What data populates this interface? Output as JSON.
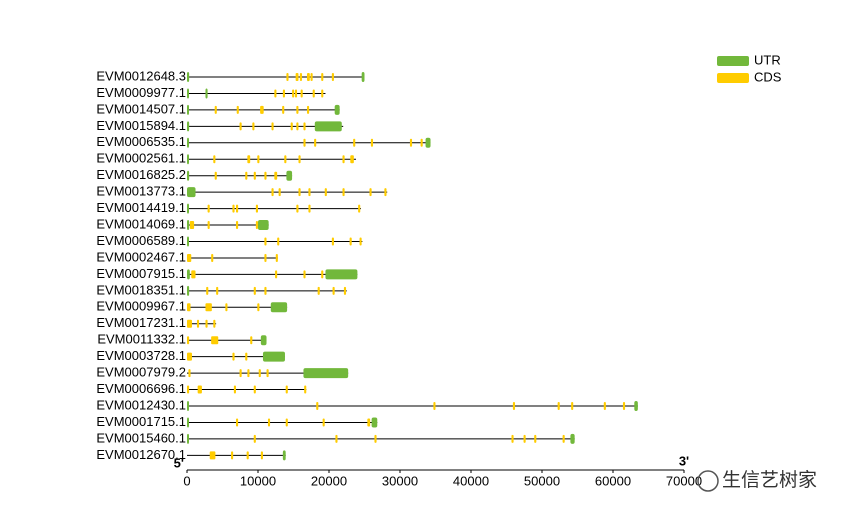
{
  "chart_data": {
    "type": "gene",
    "legend": "top-right",
    "utr_label": "UTR",
    "cds_label": "CDS",
    "utr_color": "#72b83b",
    "cds_color": "#ffcc00",
    "five_prime": "5'",
    "three_prime": "3'",
    "watermark": "生信艺树家",
    "xlim": [
      0,
      70000
    ],
    "xticks": [
      0,
      10000,
      20000,
      30000,
      40000,
      50000,
      60000,
      70000
    ],
    "genes": [
      {
        "name": "EVM0012648.3",
        "length": 25000,
        "utr": [
          [
            0,
            300
          ],
          [
            24600,
            25000
          ]
        ],
        "cds": [
          [
            14000,
            14300
          ],
          [
            15300,
            15700
          ],
          [
            15900,
            16200
          ],
          [
            16900,
            17300
          ],
          [
            17400,
            17700
          ],
          [
            18900,
            19200
          ],
          [
            20400,
            20700
          ]
        ]
      },
      {
        "name": "EVM0009977.1",
        "length": 19500,
        "utr": [
          [
            0,
            200
          ],
          [
            2600,
            2900
          ]
        ],
        "cds": [
          [
            12300,
            12600
          ],
          [
            13500,
            13800
          ],
          [
            14800,
            15100
          ],
          [
            15200,
            15500
          ],
          [
            16000,
            16300
          ],
          [
            17700,
            18000
          ],
          [
            18900,
            19200
          ]
        ]
      },
      {
        "name": "EVM0014507.1",
        "length": 21500,
        "utr": [
          [
            0,
            200
          ],
          [
            20800,
            21500
          ]
        ],
        "cds": [
          [
            3900,
            4200
          ],
          [
            7000,
            7300
          ],
          [
            10300,
            10800
          ],
          [
            13400,
            13700
          ],
          [
            15400,
            15700
          ],
          [
            16900,
            17200
          ]
        ]
      },
      {
        "name": "EVM0015894.1",
        "length": 22000,
        "utr": [
          [
            0,
            300
          ],
          [
            18000,
            21800
          ]
        ],
        "cds": [
          [
            7400,
            7700
          ],
          [
            9200,
            9500
          ],
          [
            11900,
            12200
          ],
          [
            14600,
            14900
          ],
          [
            15400,
            15700
          ],
          [
            16400,
            16700
          ]
        ]
      },
      {
        "name": "EVM0006535.1",
        "length": 34300,
        "utr": [
          [
            0,
            200
          ],
          [
            33600,
            34300
          ]
        ],
        "cds": [
          [
            16400,
            16700
          ],
          [
            17900,
            18200
          ],
          [
            23400,
            23700
          ],
          [
            25900,
            26200
          ],
          [
            31400,
            31700
          ],
          [
            32900,
            33200
          ]
        ]
      },
      {
        "name": "EVM0002561.1",
        "length": 23800,
        "utr": [
          [
            0,
            200
          ]
        ],
        "cds": [
          [
            3700,
            4000
          ],
          [
            8500,
            8900
          ],
          [
            9900,
            10200
          ],
          [
            13700,
            14000
          ],
          [
            15700,
            16000
          ],
          [
            21900,
            22200
          ],
          [
            23000,
            23500
          ]
        ]
      },
      {
        "name": "EVM0016825.2",
        "length": 14800,
        "utr": [
          [
            0,
            300
          ],
          [
            14000,
            14800
          ]
        ],
        "cds": [
          [
            3900,
            4200
          ],
          [
            8200,
            8500
          ],
          [
            9400,
            9700
          ],
          [
            10900,
            11200
          ],
          [
            12300,
            12700
          ]
        ]
      },
      {
        "name": "EVM0013773.1",
        "length": 28200,
        "utr": [
          [
            0,
            1200
          ]
        ],
        "cds": [
          [
            11900,
            12200
          ],
          [
            12900,
            13200
          ],
          [
            15700,
            16000
          ],
          [
            17100,
            17400
          ],
          [
            19400,
            19700
          ],
          [
            21900,
            22200
          ],
          [
            25700,
            26000
          ],
          [
            27800,
            28100
          ]
        ]
      },
      {
        "name": "EVM0014419.1",
        "length": 24500,
        "utr": [
          [
            0,
            200
          ]
        ],
        "cds": [
          [
            2900,
            3200
          ],
          [
            6400,
            6700
          ],
          [
            6900,
            7200
          ],
          [
            9700,
            10000
          ],
          [
            15400,
            15700
          ],
          [
            17100,
            17400
          ],
          [
            24100,
            24400
          ]
        ]
      },
      {
        "name": "EVM0014069.1",
        "length": 11500,
        "utr": [
          [
            0,
            300
          ],
          [
            10000,
            11500
          ]
        ],
        "cds": [
          [
            400,
            1000
          ],
          [
            2900,
            3200
          ],
          [
            6900,
            7200
          ],
          [
            9700,
            10000
          ]
        ]
      },
      {
        "name": "EVM0006589.1",
        "length": 24700,
        "utr": [
          [
            0,
            200
          ]
        ],
        "cds": [
          [
            10900,
            11200
          ],
          [
            12700,
            13000
          ],
          [
            20400,
            20700
          ],
          [
            22900,
            23200
          ],
          [
            24300,
            24600
          ]
        ]
      },
      {
        "name": "EVM0002467.1",
        "length": 12800,
        "utr": [],
        "cds": [
          [
            0,
            600
          ],
          [
            3400,
            3700
          ],
          [
            10900,
            11200
          ],
          [
            12500,
            12800
          ]
        ]
      },
      {
        "name": "EVM0007915.1",
        "length": 24000,
        "utr": [
          [
            0,
            400
          ],
          [
            19500,
            24000
          ]
        ],
        "cds": [
          [
            600,
            1200
          ],
          [
            12400,
            12700
          ],
          [
            16400,
            16700
          ],
          [
            18900,
            19200
          ]
        ]
      },
      {
        "name": "EVM0018351.1",
        "length": 22500,
        "utr": [
          [
            0,
            300
          ]
        ],
        "cds": [
          [
            2700,
            3000
          ],
          [
            4100,
            4400
          ],
          [
            9400,
            9700
          ],
          [
            10900,
            11200
          ],
          [
            18400,
            18700
          ],
          [
            20500,
            20800
          ],
          [
            22100,
            22400
          ]
        ]
      },
      {
        "name": "EVM0009967.1",
        "length": 14100,
        "utr": [
          [
            11800,
            14100
          ]
        ],
        "cds": [
          [
            0,
            500
          ],
          [
            2600,
            3500
          ],
          [
            5400,
            5700
          ],
          [
            9900,
            10200
          ]
        ]
      },
      {
        "name": "EVM0017231.1",
        "length": 4100,
        "utr": [],
        "cds": [
          [
            0,
            700
          ],
          [
            1400,
            1700
          ],
          [
            2600,
            2900
          ],
          [
            3700,
            4000
          ]
        ]
      },
      {
        "name": "EVM0011332.1",
        "length": 11200,
        "utr": [
          [
            10400,
            11200
          ]
        ],
        "cds": [
          [
            0,
            300
          ],
          [
            3400,
            4400
          ],
          [
            8900,
            9200
          ]
        ]
      },
      {
        "name": "EVM0003728.1",
        "length": 13800,
        "utr": [
          [
            10700,
            13800
          ]
        ],
        "cds": [
          [
            0,
            700
          ],
          [
            6400,
            6700
          ],
          [
            8200,
            8500
          ]
        ]
      },
      {
        "name": "EVM0007979.2",
        "length": 22700,
        "utr": [
          [
            16400,
            22700
          ]
        ],
        "cds": [
          [
            200,
            500
          ],
          [
            7400,
            7700
          ],
          [
            8500,
            8800
          ],
          [
            10100,
            10400
          ],
          [
            11200,
            11500
          ]
        ]
      },
      {
        "name": "EVM0006696.1",
        "length": 16800,
        "utr": [],
        "cds": [
          [
            0,
            300
          ],
          [
            1500,
            2100
          ],
          [
            6600,
            6900
          ],
          [
            9400,
            9700
          ],
          [
            13900,
            14200
          ],
          [
            16500,
            16800
          ]
        ]
      },
      {
        "name": "EVM0012430.1",
        "length": 63500,
        "utr": [
          [
            0,
            200
          ],
          [
            63000,
            63500
          ]
        ],
        "cds": [
          [
            18200,
            18500
          ],
          [
            34700,
            35000
          ],
          [
            45900,
            46200
          ],
          [
            52200,
            52500
          ],
          [
            54100,
            54400
          ],
          [
            58700,
            59000
          ],
          [
            61400,
            61700
          ]
        ]
      },
      {
        "name": "EVM0001715.1",
        "length": 26800,
        "utr": [
          [
            0,
            200
          ],
          [
            26000,
            26800
          ]
        ],
        "cds": [
          [
            6900,
            7200
          ],
          [
            11400,
            11700
          ],
          [
            13900,
            14200
          ],
          [
            19100,
            19400
          ],
          [
            25400,
            25800
          ]
        ]
      },
      {
        "name": "EVM0015460.1",
        "length": 54600,
        "utr": [
          [
            0,
            200
          ],
          [
            54000,
            54600
          ]
        ],
        "cds": [
          [
            9400,
            9700
          ],
          [
            20900,
            21200
          ],
          [
            26400,
            26700
          ],
          [
            45700,
            46000
          ],
          [
            47400,
            47700
          ],
          [
            48900,
            49200
          ],
          [
            52900,
            53200
          ]
        ]
      },
      {
        "name": "EVM0012670.1",
        "length": 13900,
        "utr": [
          [
            13500,
            13900
          ]
        ],
        "cds": [
          [
            3200,
            4000
          ],
          [
            6200,
            6500
          ],
          [
            8400,
            8700
          ],
          [
            10400,
            10700
          ]
        ]
      }
    ]
  }
}
